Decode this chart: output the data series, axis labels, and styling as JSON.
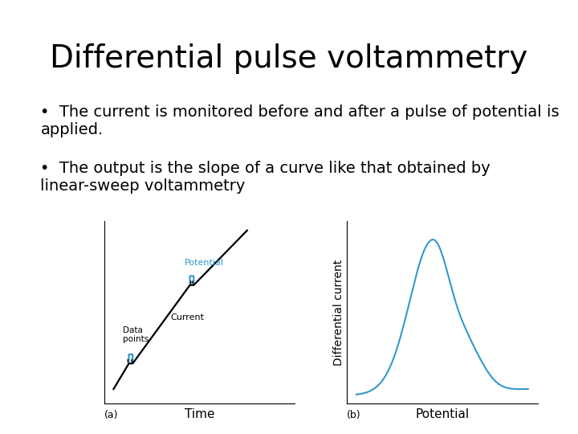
{
  "title": "Differential pulse voltammetry",
  "bullet1": "The current is monitored before and after a pulse of potential is applied.",
  "bullet2": "The output is the slope of a curve like that obtained by linear-sweep voltammetry",
  "bg_color": "#ffffff",
  "title_fontsize": 28,
  "bullet_fontsize": 14,
  "label_a": "(a)",
  "label_b": "(b)",
  "xlabel_a": "Time",
  "xlabel_b": "Potential",
  "ylabel_b": "Differential current",
  "label_potential": "Potential",
  "label_current": "Current",
  "label_data_points": "Data\npoints",
  "blue_color": "#3399cc",
  "black_color": "#000000",
  "gray_color": "#888888"
}
